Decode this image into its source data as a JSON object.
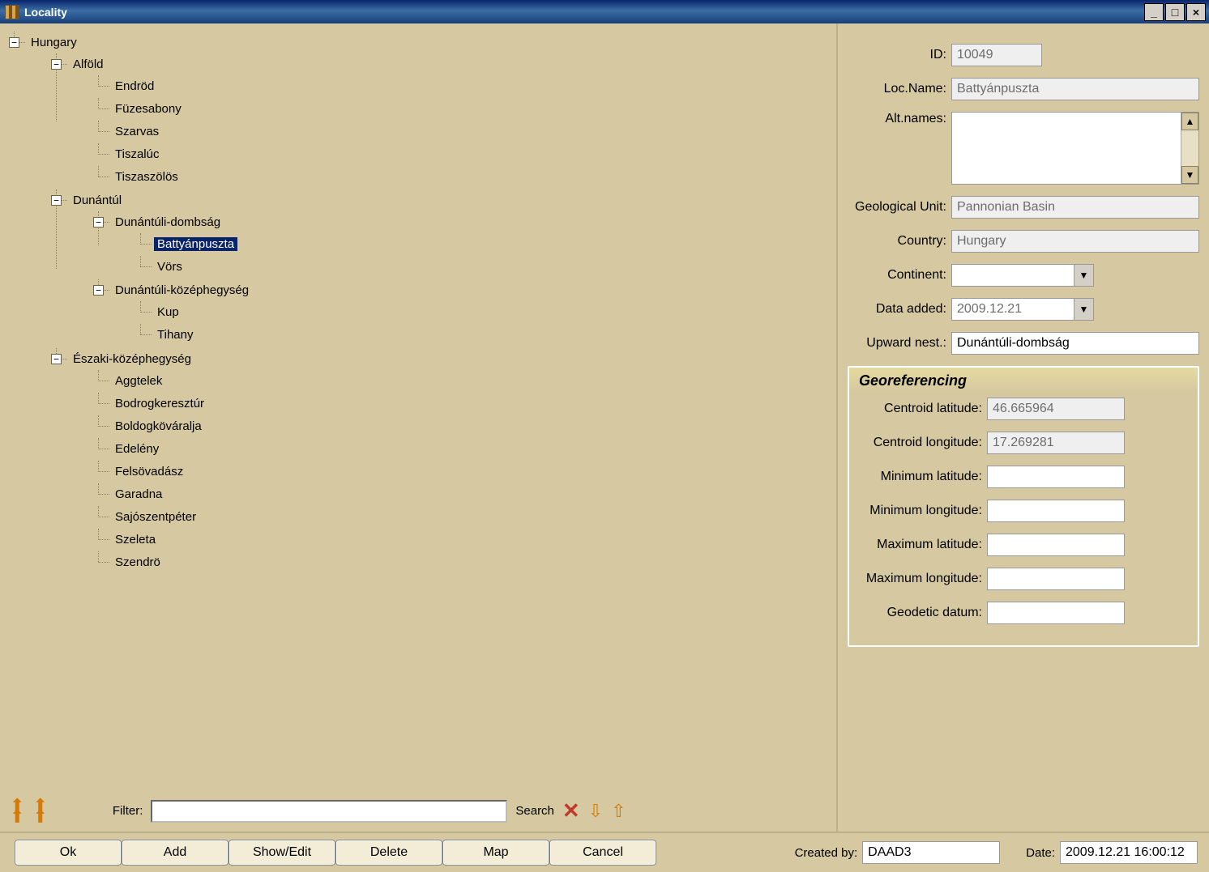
{
  "window": {
    "title": "Locality"
  },
  "tree": {
    "root_label": "Hungary",
    "alfold": {
      "label": "Alföld",
      "children": [
        "Endröd",
        "Füzesabony",
        "Szarvas",
        "Tiszalúc",
        "Tiszaszölös"
      ]
    },
    "dunantul": {
      "label": "Dunántúl",
      "dombsag": {
        "label": "Dunántúli-dombság",
        "children": [
          "Battyánpuszta",
          "Vörs"
        ],
        "selected_index": 0
      },
      "kozephegyseg": {
        "label": "Dunántúli-középhegység",
        "children": [
          "Kup",
          "Tihany"
        ]
      }
    },
    "eszaki": {
      "label": "Északi-középhegység",
      "children": [
        "Aggtelek",
        "Bodrogkeresztúr",
        "Boldogköváralja",
        "Edelény",
        "Felsövadász",
        "Garadna",
        "Sajószentpéter",
        "Szeleta",
        "Szendrö"
      ]
    }
  },
  "filter": {
    "label": "Filter:",
    "value": "",
    "search_label": "Search"
  },
  "details": {
    "id_label": "ID:",
    "id": "10049",
    "loc_name_label": "Loc.Name:",
    "loc_name": "Battyánpuszta",
    "alt_names_label": "Alt.names:",
    "geo_unit_label": "Geological Unit:",
    "geo_unit": "Pannonian Basin",
    "country_label": "Country:",
    "country": "Hungary",
    "continent_label": "Continent:",
    "continent": "",
    "data_added_label": "Data added:",
    "data_added": "2009.12.21",
    "upward_label": "Upward nest.:",
    "upward": "Dunántúli-dombság"
  },
  "georef": {
    "title": "Georeferencing",
    "centroid_lat_label": "Centroid latitude:",
    "centroid_lat": "46.665964",
    "centroid_lon_label": "Centroid longitude:",
    "centroid_lon": "17.269281",
    "min_lat_label": "Minimum latitude:",
    "min_lat": "",
    "min_lon_label": "Minimum longitude:",
    "min_lon": "",
    "max_lat_label": "Maximum latitude:",
    "max_lat": "",
    "max_lon_label": "Maximum longitude:",
    "max_lon": "",
    "datum_label": "Geodetic datum:",
    "datum": ""
  },
  "footer": {
    "buttons": [
      "Ok",
      "Add",
      "Show/Edit",
      "Delete",
      "Map",
      "Cancel"
    ],
    "created_by_label": "Created by:",
    "created_by": "DAAD3",
    "date_label": "Date:",
    "date": "2009.12.21 16:00:12"
  },
  "colors": {
    "panel_bg": "#d6c8a0",
    "titlebar_start": "#0a246a",
    "titlebar_end": "#3a6ea5",
    "selection_bg": "#0a246a",
    "readonly_bg": "#efefef",
    "button_bg": "#f3ecd6",
    "icon_orange": "#d97a00",
    "icon_red": "#c0392b"
  }
}
